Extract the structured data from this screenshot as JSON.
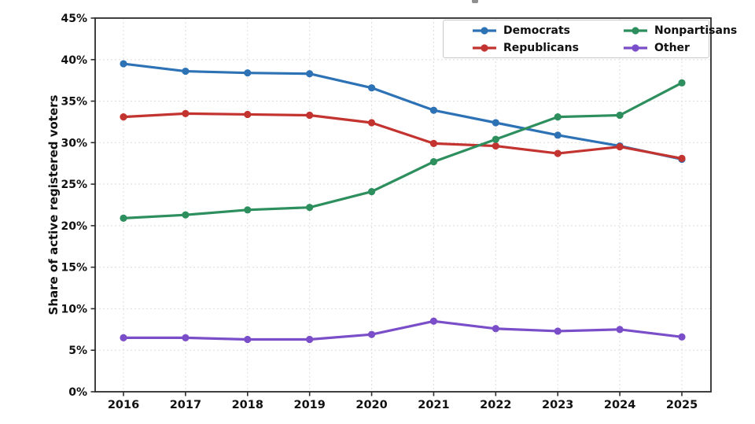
{
  "chart_data": {
    "type": "line",
    "x": [
      2016,
      2017,
      2018,
      2019,
      2020,
      2021,
      2022,
      2023,
      2024,
      2025
    ],
    "x_tick_labels": [
      "2016",
      "2017",
      "2018",
      "2019",
      "2020",
      "2021",
      "2022",
      "2023",
      "2024",
      "2025"
    ],
    "y_tick_labels": [
      "0%",
      "5%",
      "10%",
      "15%",
      "20%",
      "25%",
      "30%",
      "35%",
      "40%",
      "45%"
    ],
    "ylabel": "Share of active registered voters",
    "xlabel": "",
    "ylim": [
      0,
      45
    ],
    "ytick_step": 5,
    "grid": true,
    "legend_position": "upper-right",
    "legend_columns": 2,
    "series": [
      {
        "name": "Democrats",
        "color": "#2d72b5",
        "values": [
          39.5,
          38.6,
          38.4,
          38.3,
          36.6,
          33.9,
          32.4,
          30.9,
          29.6,
          28.0
        ]
      },
      {
        "name": "Republicans",
        "color": "#c3332f",
        "values": [
          33.1,
          33.5,
          33.4,
          33.3,
          32.4,
          29.9,
          29.6,
          28.7,
          29.5,
          28.1
        ]
      },
      {
        "name": "Nonpartisans",
        "color": "#2e8f5e",
        "values": [
          20.9,
          21.3,
          21.9,
          22.2,
          24.1,
          27.7,
          30.4,
          33.1,
          33.3,
          37.2
        ]
      },
      {
        "name": "Other",
        "color": "#7b4ec9",
        "values": [
          6.5,
          6.5,
          6.3,
          6.3,
          6.9,
          8.5,
          7.6,
          7.3,
          7.5,
          6.6
        ]
      }
    ],
    "colors": {
      "spine": "#2b2b2b",
      "grid": "#e2dede",
      "tick_text": "#111111",
      "title_fragment": "#8f8f8f"
    }
  }
}
